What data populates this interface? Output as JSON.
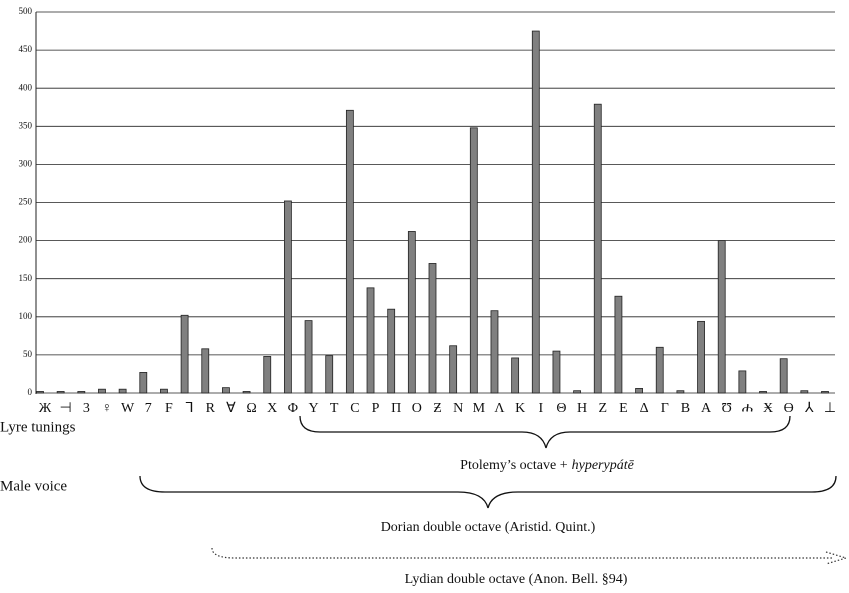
{
  "chart_data": {
    "type": "bar",
    "categories": [
      "Ж",
      "⊣",
      "3",
      "♀",
      "W",
      "7",
      "F",
      "⅂",
      "R",
      "∀",
      "Ω",
      "X",
      "Φ",
      "Y",
      "T",
      "C",
      "P",
      "Π",
      "O",
      "Ƶ",
      "N",
      "M",
      "Λ",
      "K",
      "I",
      "Θ",
      "H",
      "Z",
      "E",
      "Δ",
      "Γ",
      "B",
      "A",
      "Ʊ",
      "ሐ",
      "Ӿ",
      "Ɵ",
      "⅄",
      "⊥"
    ],
    "values": [
      2,
      2,
      2,
      5,
      5,
      27,
      5,
      102,
      58,
      7,
      2,
      48,
      252,
      95,
      49,
      371,
      138,
      110,
      212,
      170,
      62,
      348,
      108,
      46,
      475,
      55,
      3,
      379,
      127,
      6,
      60,
      3,
      94,
      200,
      29,
      2,
      45,
      3,
      2
    ],
    "color": "#808080",
    "ylim": [
      0,
      500
    ],
    "yticks": [
      0,
      50,
      100,
      150,
      200,
      250,
      300,
      350,
      400,
      450,
      500
    ],
    "grid": true,
    "row_labels": [
      "Lyre tunings",
      "Male voice"
    ],
    "annotations": {
      "ptolemy": {
        "text": "Ptolemy’s octave +",
        "italic": "hyperypátē"
      },
      "dorian": "Dorian double octave (Aristid. Quint.)",
      "lydian": "Lydian double octave (Anon. Bell. §94)"
    }
  }
}
